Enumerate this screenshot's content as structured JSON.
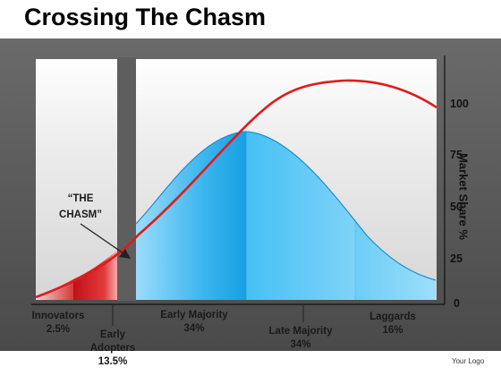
{
  "title": "Crossing The Chasm",
  "callout": {
    "line1": "“THE",
    "line2": "CHASM”"
  },
  "axis": {
    "title": "Market Share %",
    "ticks": [
      "100",
      "75",
      "50",
      "25",
      "0"
    ]
  },
  "segments": [
    {
      "line1": "Innovators",
      "line2": "2.5%"
    },
    {
      "line1": "Early",
      "line2": "Adopters",
      "line3": "13.5%"
    },
    {
      "line1": "Early Majority",
      "line2": "34%"
    },
    {
      "line1": "Late Majority",
      "line2": "34%"
    },
    {
      "line1": "Laggards",
      "line2": "16%"
    }
  ],
  "logo": "Your Logo",
  "colors": {
    "background_band": "#5a5a5a",
    "panel": "#e8e8e8",
    "bell_blue": "#35b0ec",
    "early_segments_red": "#c8141c",
    "curve_red": "#e01b1b"
  }
}
